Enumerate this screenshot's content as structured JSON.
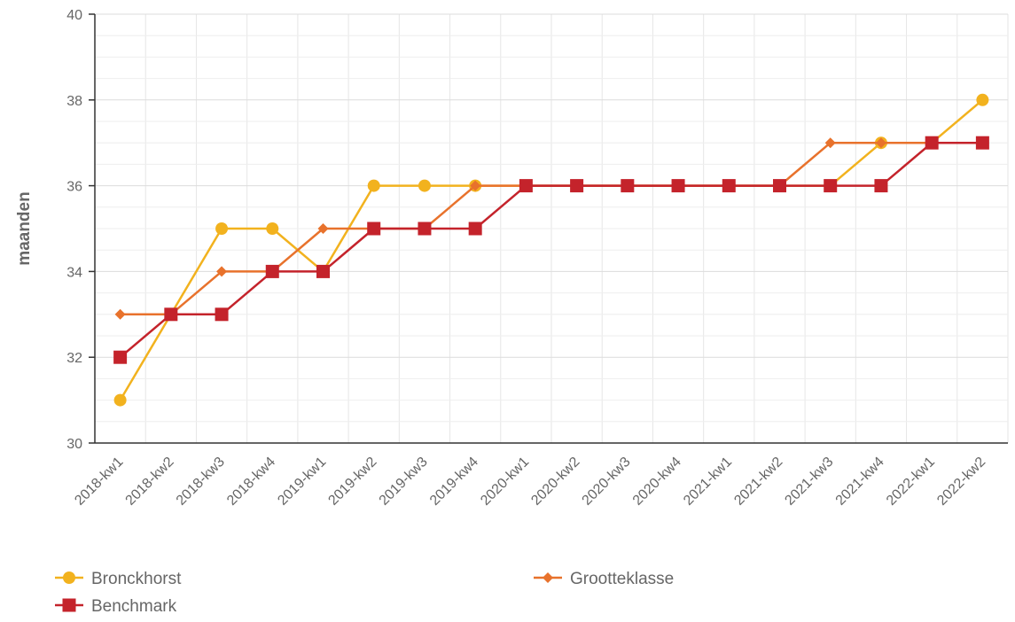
{
  "chart_data": {
    "type": "line",
    "title": "",
    "xlabel": "",
    "ylabel": "maanden",
    "ylim": [
      30,
      40
    ],
    "yticks": [
      30,
      32,
      34,
      36,
      38,
      40
    ],
    "grid": true,
    "legend_position": "bottom",
    "categories": [
      "2018-kw1",
      "2018-kw2",
      "2018-kw3",
      "2018-kw4",
      "2019-kw1",
      "2019-kw2",
      "2019-kw3",
      "2019-kw4",
      "2020-kw1",
      "2020-kw2",
      "2020-kw3",
      "2020-kw4",
      "2021-kw1",
      "2021-kw2",
      "2021-kw3",
      "2021-kw4",
      "2022-kw1",
      "2022-kw2"
    ],
    "series": [
      {
        "name": "Bronckhorst",
        "color": "#f2b21e",
        "marker": "circle",
        "values": [
          31,
          33,
          35,
          35,
          34,
          36,
          36,
          36,
          36,
          36,
          36,
          36,
          36,
          36,
          36,
          37,
          37,
          38
        ]
      },
      {
        "name": "Grootteklasse",
        "color": "#e8722c",
        "marker": "diamond",
        "values": [
          33,
          33,
          34,
          34,
          35,
          35,
          35,
          36,
          36,
          36,
          36,
          36,
          36,
          36,
          37,
          37,
          37,
          37
        ]
      },
      {
        "name": "Benchmark",
        "color": "#c4232b",
        "marker": "square",
        "values": [
          32,
          33,
          33,
          34,
          34,
          35,
          35,
          35,
          36,
          36,
          36,
          36,
          36,
          36,
          36,
          36,
          37,
          37
        ]
      }
    ]
  }
}
